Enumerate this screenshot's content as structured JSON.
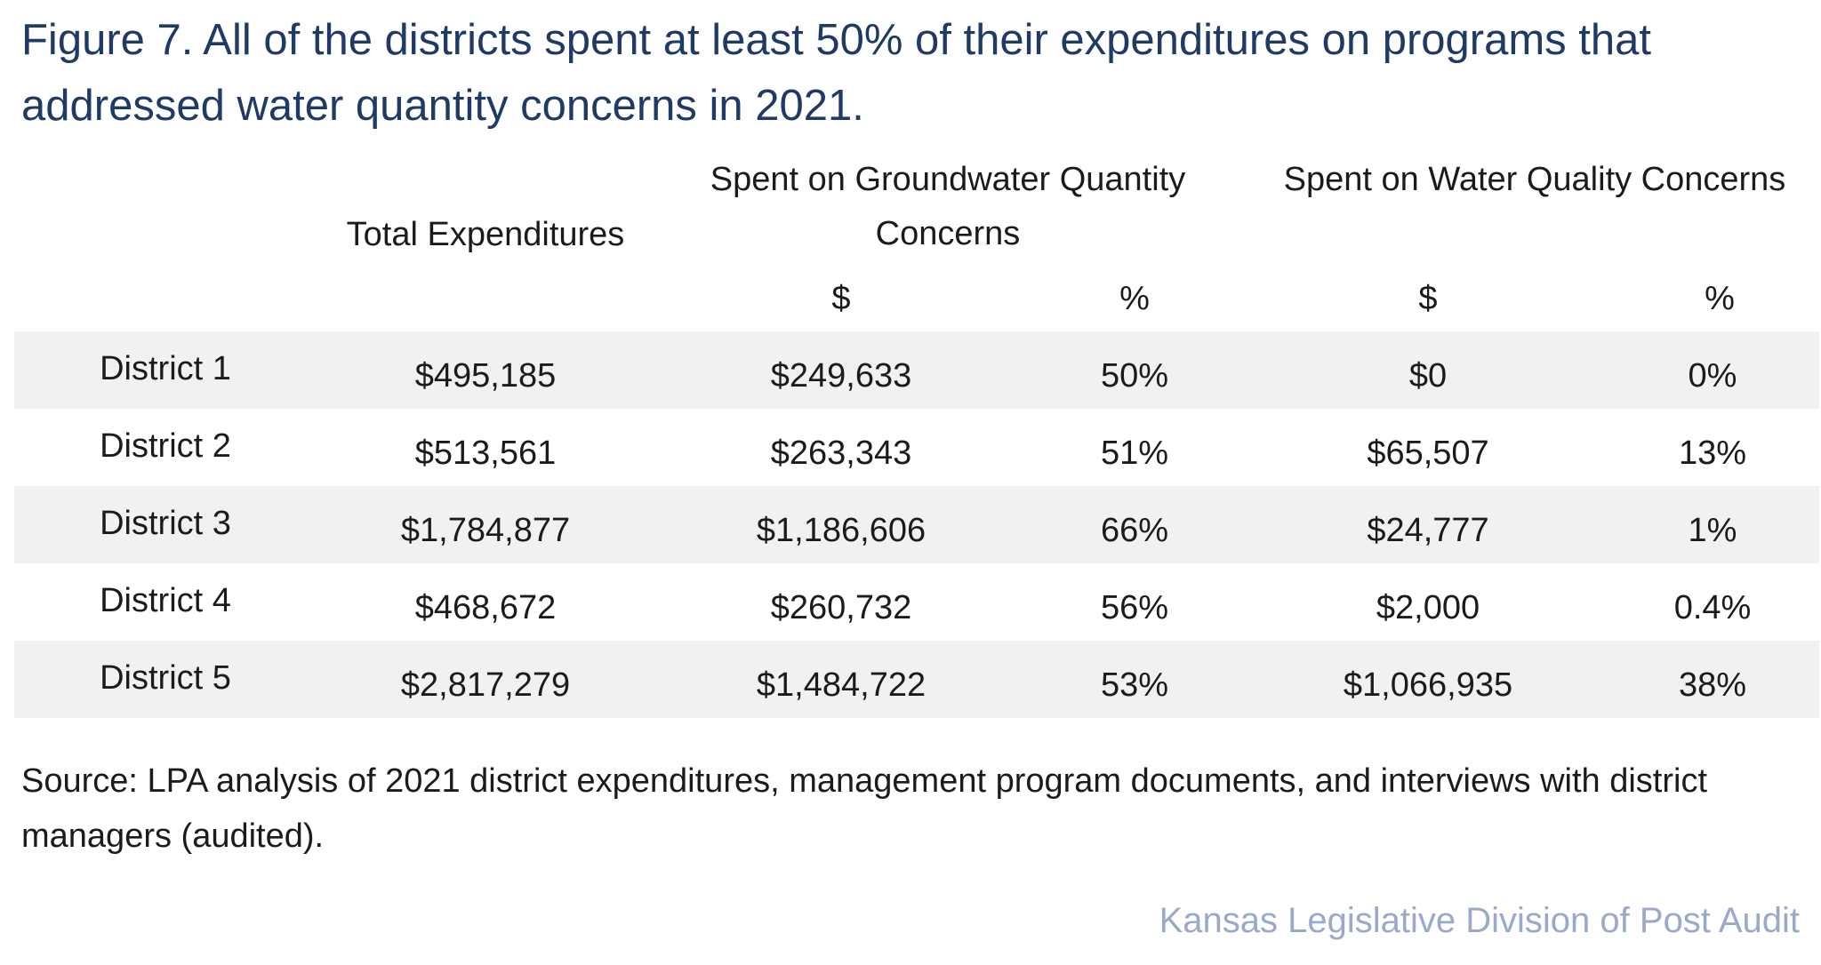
{
  "chart_data": {
    "type": "table",
    "title": "Figure 7. All of the districts spent at least 50% of their expenditures on programs that addressed water quantity concerns in 2021.",
    "column_groups": {
      "total": "Total Expenditures",
      "quantity": "Spent on Groundwater Quantity Concerns",
      "quality": "Spent on Water Quality Concerns"
    },
    "sub_headers": {
      "dollar": "$",
      "percent": "%"
    },
    "rows": [
      {
        "district": "District 1",
        "total": "$495,185",
        "qty_dollars": "$249,633",
        "qty_pct": "50%",
        "qual_dollars": "$0",
        "qual_pct": "0%"
      },
      {
        "district": "District 2",
        "total": "$513,561",
        "qty_dollars": "$263,343",
        "qty_pct": "51%",
        "qual_dollars": "$65,507",
        "qual_pct": "13%"
      },
      {
        "district": "District 3",
        "total": "$1,784,877",
        "qty_dollars": "$1,186,606",
        "qty_pct": "66%",
        "qual_dollars": "$24,777",
        "qual_pct": "1%"
      },
      {
        "district": "District 4",
        "total": "$468,672",
        "qty_dollars": "$260,732",
        "qty_pct": "56%",
        "qual_dollars": "$2,000",
        "qual_pct": "0.4%"
      },
      {
        "district": "District 5",
        "total": "$2,817,279",
        "qty_dollars": "$1,484,722",
        "qty_pct": "53%",
        "qual_dollars": "$1,066,935",
        "qual_pct": "38%"
      }
    ],
    "source": "Source: LPA analysis of 2021 district expenditures, management program documents, and interviews with district managers (audited).",
    "credit": "Kansas Legislative Division of Post Audit",
    "colors": {
      "title": "#1f3a64",
      "shade": "#f1f1f1",
      "credit": "#9aa9c9"
    }
  }
}
